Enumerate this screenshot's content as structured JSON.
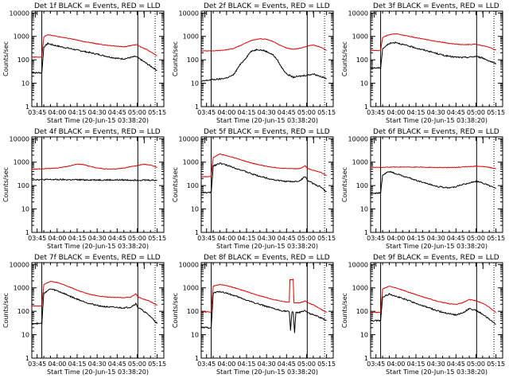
{
  "figure": {
    "x_tick_labels": [
      "03:45",
      "04:00",
      "04:15",
      "04:30",
      "04:45",
      "05:00",
      "05:15"
    ],
    "x_tick_minutes": [
      0,
      15,
      30,
      45,
      60,
      75,
      90
    ],
    "x_range_minutes": [
      -4,
      95
    ],
    "y_tick_labels": [
      "1",
      "10",
      "100",
      "1000",
      "10000"
    ],
    "y_tick_values": [
      1,
      10,
      100,
      1000,
      10000
    ],
    "ylim": [
      1,
      12000
    ],
    "ylabel": "Counts/sec",
    "xlabel": "Start Time (20-Jun-15 03:38:20)",
    "start_minute": 3.5,
    "end_minute": 75.5,
    "dotted_minute": 88.5,
    "colors": {
      "events": "#000000",
      "lld": "#e00000",
      "frame": "#000000"
    }
  },
  "chart_data": [
    {
      "type": "line",
      "title": "Det 1f BLACK = Events, RED = LLD",
      "series": [
        {
          "name": "Events",
          "color": "#000000",
          "x": [
            -4,
            3,
            3.5,
            5,
            8,
            12,
            16,
            20,
            25,
            30,
            35,
            40,
            45,
            50,
            55,
            60,
            65,
            70,
            74,
            75.5,
            78,
            82,
            86,
            90
          ],
          "y": [
            28,
            28,
            28,
            350,
            500,
            430,
            380,
            340,
            300,
            260,
            230,
            200,
            175,
            150,
            130,
            115,
            110,
            125,
            140,
            120,
            100,
            70,
            50,
            35
          ]
        },
        {
          "name": "LLD",
          "color": "#e00000",
          "x": [
            -4,
            3,
            3.5,
            5,
            8,
            12,
            16,
            20,
            25,
            30,
            35,
            40,
            45,
            50,
            55,
            60,
            65,
            70,
            74,
            75.5,
            78,
            82,
            86,
            90
          ],
          "y": [
            130,
            130,
            130,
            950,
            1200,
            1080,
            980,
            900,
            800,
            700,
            600,
            540,
            480,
            430,
            400,
            380,
            360,
            400,
            450,
            420,
            350,
            280,
            200,
            150
          ]
        }
      ]
    },
    {
      "type": "line",
      "title": "Det 2f BLACK = Events, RED = LLD",
      "series": [
        {
          "name": "Events",
          "color": "#000000",
          "x": [
            -4,
            3,
            10,
            15,
            20,
            25,
            30,
            33,
            38,
            43,
            47,
            50,
            53,
            56,
            60,
            65,
            70,
            75,
            80,
            85,
            90
          ],
          "y": [
            12,
            14,
            15,
            17,
            22,
            60,
            130,
            220,
            280,
            250,
            200,
            160,
            100,
            50,
            25,
            18,
            20,
            22,
            25,
            20,
            16
          ]
        },
        {
          "name": "LLD",
          "color": "#e00000",
          "x": [
            -4,
            3,
            10,
            15,
            20,
            25,
            30,
            35,
            40,
            45,
            50,
            55,
            60,
            65,
            70,
            75,
            80,
            85,
            90
          ],
          "y": [
            240,
            240,
            250,
            270,
            300,
            400,
            550,
            700,
            780,
            760,
            600,
            420,
            320,
            280,
            310,
            380,
            430,
            360,
            250
          ]
        }
      ]
    },
    {
      "type": "line",
      "title": "Det 3f BLACK = Events, RED = LLD",
      "series": [
        {
          "name": "Events",
          "color": "#000000",
          "x": [
            -4,
            3,
            3.5,
            5,
            10,
            15,
            20,
            25,
            30,
            35,
            40,
            45,
            50,
            55,
            60,
            65,
            70,
            75,
            80,
            85,
            90
          ],
          "y": [
            45,
            45,
            45,
            300,
            500,
            560,
            450,
            380,
            320,
            270,
            230,
            190,
            160,
            140,
            130,
            125,
            130,
            140,
            120,
            90,
            65
          ]
        },
        {
          "name": "LLD",
          "color": "#e00000",
          "x": [
            -4,
            3,
            3.5,
            5,
            10,
            15,
            20,
            25,
            30,
            35,
            40,
            45,
            50,
            55,
            60,
            65,
            70,
            75,
            80,
            85,
            90
          ],
          "y": [
            250,
            250,
            250,
            900,
            1200,
            1300,
            1150,
            1000,
            880,
            780,
            700,
            620,
            560,
            500,
            470,
            440,
            450,
            460,
            400,
            340,
            260
          ]
        }
      ]
    },
    {
      "type": "line",
      "title": "Det 4f BLACK = Events, RED = LLD",
      "series": [
        {
          "name": "Events",
          "color": "#000000",
          "x": [
            -4,
            10,
            20,
            30,
            40,
            50,
            60,
            70,
            80,
            90
          ],
          "y": [
            180,
            180,
            178,
            176,
            175,
            174,
            173,
            172,
            172,
            170
          ]
        },
        {
          "name": "LLD",
          "color": "#e00000",
          "x": [
            -4,
            5,
            10,
            15,
            20,
            25,
            30,
            35,
            40,
            45,
            50,
            55,
            60,
            65,
            70,
            75,
            80,
            85,
            90
          ],
          "y": [
            500,
            520,
            540,
            560,
            620,
            700,
            830,
            780,
            650,
            560,
            520,
            500,
            520,
            560,
            640,
            720,
            820,
            740,
            600
          ]
        }
      ]
    },
    {
      "type": "line",
      "title": "Det 5f BLACK = Events, RED = LLD",
      "series": [
        {
          "name": "Events",
          "color": "#000000",
          "x": [
            -4,
            3,
            3.5,
            5,
            10,
            15,
            20,
            25,
            30,
            35,
            40,
            45,
            50,
            55,
            60,
            65,
            70,
            74,
            75.5,
            80,
            85,
            90
          ],
          "y": [
            50,
            50,
            50,
            700,
            900,
            750,
            600,
            480,
            380,
            300,
            250,
            210,
            180,
            160,
            150,
            145,
            160,
            250,
            170,
            120,
            90,
            55
          ]
        },
        {
          "name": "LLD",
          "color": "#e00000",
          "x": [
            -4,
            3,
            3.5,
            5,
            10,
            15,
            20,
            25,
            30,
            35,
            40,
            45,
            50,
            55,
            60,
            65,
            70,
            74,
            75.5,
            80,
            85,
            90
          ],
          "y": [
            240,
            240,
            240,
            1600,
            2200,
            1900,
            1600,
            1300,
            1050,
            880,
            760,
            660,
            600,
            560,
            540,
            520,
            530,
            700,
            540,
            450,
            380,
            270
          ]
        }
      ]
    },
    {
      "type": "line",
      "title": "Det 6f BLACK = Events, RED = LLD",
      "series": [
        {
          "name": "Events",
          "color": "#000000",
          "x": [
            -4,
            3,
            3.5,
            5,
            10,
            15,
            20,
            25,
            30,
            35,
            40,
            45,
            50,
            55,
            60,
            65,
            70,
            75,
            80,
            85,
            90
          ],
          "y": [
            48,
            48,
            48,
            280,
            400,
            320,
            260,
            210,
            170,
            140,
            115,
            95,
            85,
            80,
            90,
            110,
            130,
            150,
            130,
            100,
            75
          ]
        },
        {
          "name": "LLD",
          "color": "#e00000",
          "x": [
            -4,
            3,
            10,
            20,
            30,
            40,
            50,
            60,
            70,
            75,
            80,
            85,
            90
          ],
          "y": [
            600,
            600,
            610,
            620,
            610,
            600,
            590,
            600,
            640,
            680,
            650,
            600,
            520
          ]
        }
      ]
    },
    {
      "type": "line",
      "title": "Det 7f BLACK = Events, RED = LLD",
      "series": [
        {
          "name": "Events",
          "color": "#000000",
          "x": [
            -4,
            3,
            3.5,
            5,
            10,
            15,
            20,
            25,
            30,
            35,
            40,
            45,
            50,
            55,
            60,
            65,
            70,
            74,
            75.5,
            80,
            85,
            90
          ],
          "y": [
            30,
            30,
            30,
            600,
            900,
            750,
            580,
            430,
            330,
            260,
            210,
            180,
            160,
            150,
            145,
            140,
            150,
            210,
            150,
            100,
            60,
            30
          ]
        },
        {
          "name": "LLD",
          "color": "#e00000",
          "x": [
            -4,
            3,
            3.5,
            5,
            10,
            15,
            20,
            25,
            30,
            35,
            40,
            45,
            50,
            55,
            60,
            65,
            70,
            74,
            75.5,
            80,
            85,
            90
          ],
          "y": [
            170,
            170,
            170,
            1400,
            1900,
            1700,
            1350,
            1050,
            800,
            640,
            520,
            460,
            420,
            400,
            390,
            380,
            400,
            560,
            410,
            330,
            260,
            180
          ]
        }
      ]
    },
    {
      "type": "line",
      "title": "Det 8f BLACK = Events, RED = LLD",
      "series": [
        {
          "name": "Events",
          "color": "#000000",
          "x": [
            -4,
            3,
            3.5,
            5,
            10,
            15,
            20,
            25,
            30,
            35,
            40,
            45,
            50,
            55,
            60,
            62,
            63,
            64,
            65,
            66,
            67,
            70,
            74,
            75.5,
            80,
            85,
            90
          ],
          "y": [
            20,
            20,
            20,
            600,
            700,
            600,
            480,
            380,
            300,
            240,
            200,
            160,
            130,
            110,
            100,
            95,
            15,
            95,
            90,
            12,
            90,
            88,
            110,
            90,
            70,
            55,
            40
          ]
        },
        {
          "name": "LLD",
          "color": "#e00000",
          "x": [
            -4,
            3,
            3.5,
            5,
            10,
            15,
            20,
            25,
            30,
            35,
            40,
            45,
            50,
            55,
            60,
            62,
            62.5,
            63,
            64,
            65,
            65.5,
            66,
            70,
            74,
            75.5,
            80,
            85,
            90
          ],
          "y": [
            95,
            95,
            95,
            1200,
            1400,
            1250,
            1050,
            850,
            700,
            560,
            460,
            380,
            320,
            280,
            250,
            240,
            2200,
            2300,
            2200,
            2300,
            240,
            230,
            230,
            280,
            240,
            190,
            130,
            90
          ]
        }
      ]
    },
    {
      "type": "line",
      "title": "Det 9f BLACK = Events, RED = LLD",
      "series": [
        {
          "name": "Events",
          "color": "#000000",
          "x": [
            -4,
            3,
            3.5,
            5,
            10,
            15,
            20,
            25,
            30,
            35,
            40,
            45,
            50,
            55,
            60,
            65,
            70,
            75,
            80,
            85,
            90
          ],
          "y": [
            40,
            40,
            40,
            400,
            550,
            450,
            350,
            280,
            220,
            170,
            140,
            110,
            90,
            80,
            70,
            85,
            130,
            110,
            75,
            45,
            28
          ]
        },
        {
          "name": "LLD",
          "color": "#e00000",
          "x": [
            -4,
            3,
            3.5,
            5,
            10,
            15,
            20,
            25,
            30,
            35,
            40,
            45,
            50,
            55,
            60,
            65,
            70,
            75,
            80,
            85,
            90
          ],
          "y": [
            90,
            90,
            90,
            900,
            1200,
            1000,
            800,
            640,
            520,
            420,
            340,
            280,
            240,
            210,
            200,
            230,
            320,
            280,
            220,
            150,
            90
          ]
        }
      ]
    }
  ]
}
